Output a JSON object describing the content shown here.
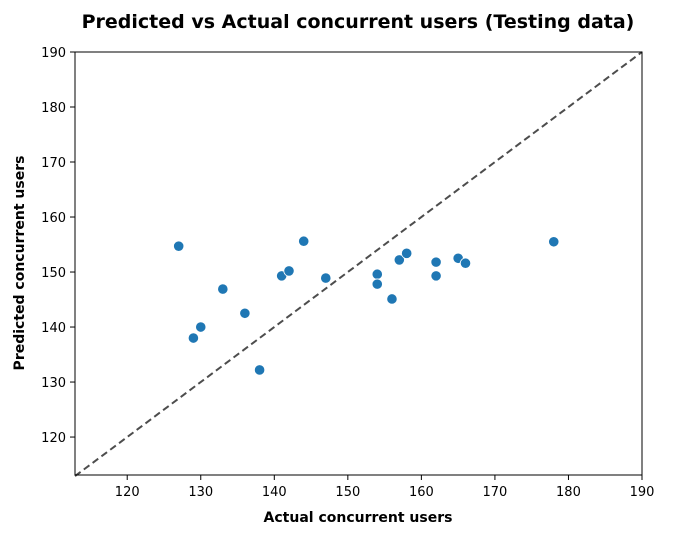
{
  "chart_data": {
    "type": "scatter",
    "title": "Predicted vs Actual concurrent users (Testing data)",
    "xlabel": "Actual concurrent users",
    "ylabel": "Predicted concurrent users",
    "xlim": [
      112.9,
      190
    ],
    "ylim": [
      113.1,
      190
    ],
    "xticks": [
      120,
      130,
      140,
      150,
      160,
      170,
      180,
      190
    ],
    "yticks": [
      120,
      130,
      140,
      150,
      160,
      170,
      180,
      190
    ],
    "point_color": "#1f77b4",
    "reference_line": {
      "style": "dashed",
      "color": "#4d4d4d",
      "from": [
        112.9,
        112.9
      ],
      "to": [
        190,
        190
      ]
    },
    "points": [
      {
        "x": 127,
        "y": 154.7
      },
      {
        "x": 129,
        "y": 138.0
      },
      {
        "x": 130,
        "y": 140.0
      },
      {
        "x": 133,
        "y": 146.9
      },
      {
        "x": 136,
        "y": 142.5
      },
      {
        "x": 138,
        "y": 132.2
      },
      {
        "x": 141,
        "y": 149.3
      },
      {
        "x": 142,
        "y": 150.2
      },
      {
        "x": 144,
        "y": 155.6
      },
      {
        "x": 147,
        "y": 148.9
      },
      {
        "x": 154,
        "y": 149.6
      },
      {
        "x": 154,
        "y": 147.8
      },
      {
        "x": 156,
        "y": 145.1
      },
      {
        "x": 157,
        "y": 152.2
      },
      {
        "x": 158,
        "y": 153.4
      },
      {
        "x": 162,
        "y": 151.8
      },
      {
        "x": 162,
        "y": 149.3
      },
      {
        "x": 165,
        "y": 152.5
      },
      {
        "x": 166,
        "y": 151.6
      },
      {
        "x": 178,
        "y": 155.5
      }
    ]
  }
}
